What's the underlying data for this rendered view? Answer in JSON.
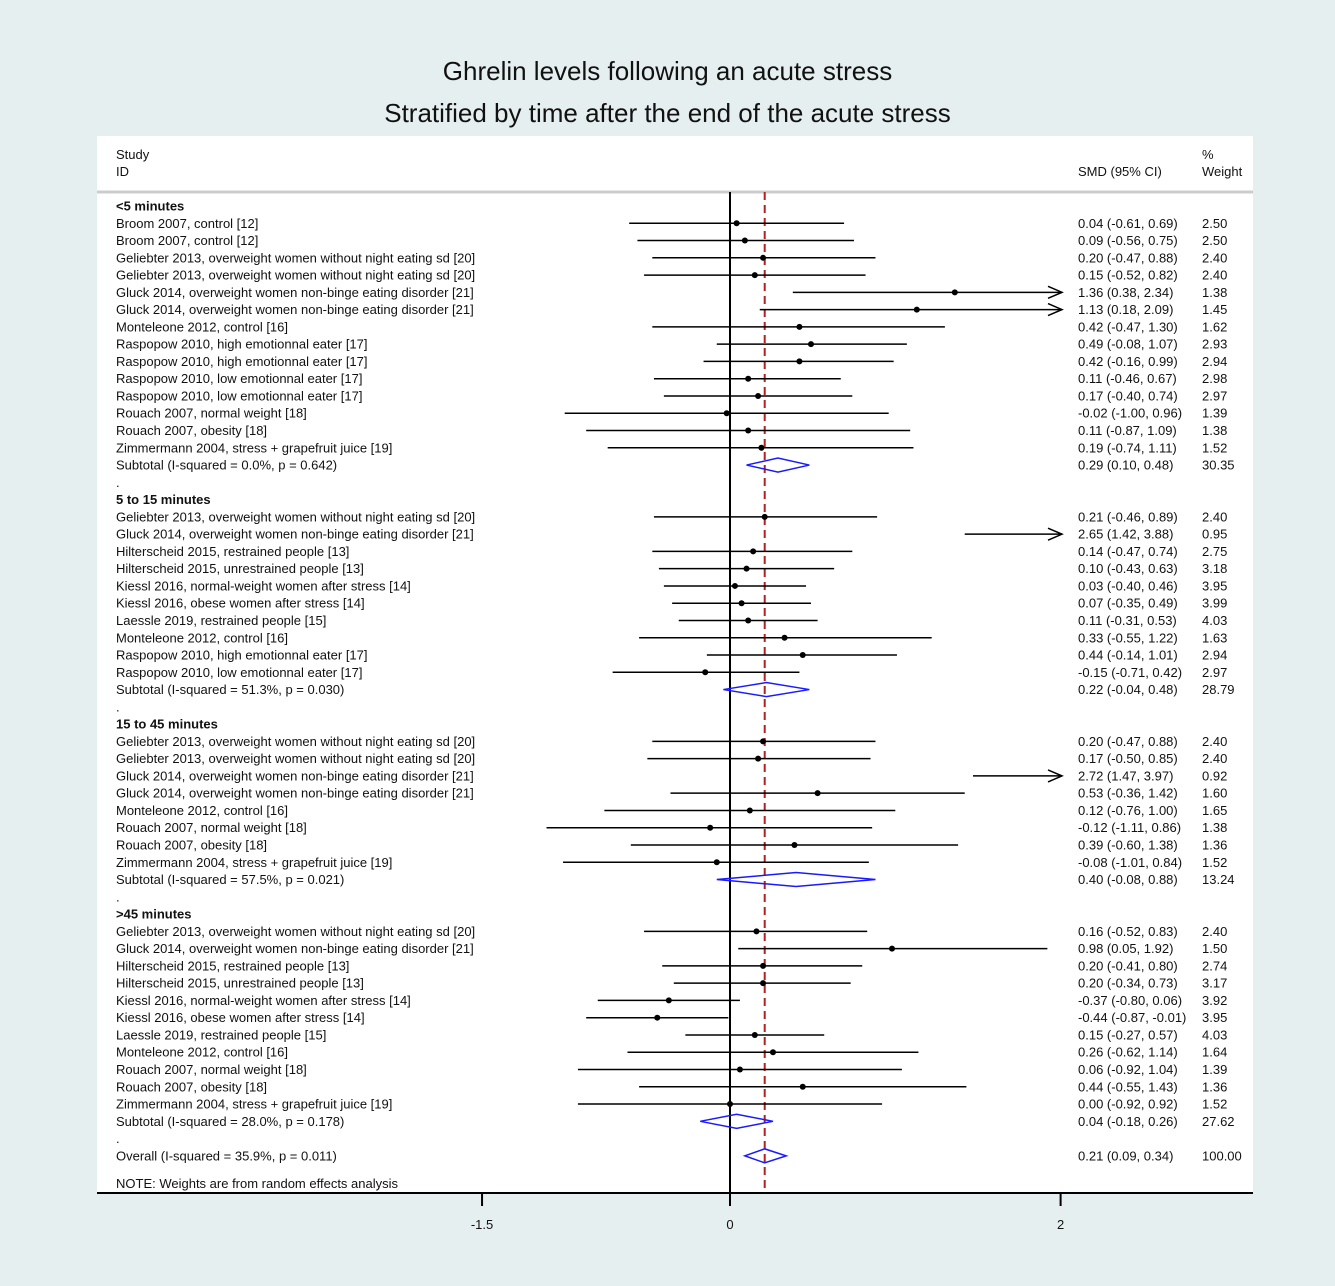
{
  "title": "Ghrelin levels following an acute stress",
  "subtitle": "Stratified by time after the end of the acute stress",
  "header": {
    "study_label": "Study",
    "id_label": "ID",
    "effect_label": "SMD (95% CI)",
    "weight_label_1": "%",
    "weight_label_2": "Weight"
  },
  "note": "NOTE: Weights are from random effects analysis",
  "chart_data": {
    "type": "forest",
    "x_ticks": [
      -1.5,
      0,
      2
    ],
    "x_tick_labels": [
      "-1.5",
      "0",
      "2"
    ],
    "xlim": [
      -2.32,
      3.15
    ],
    "null_line": 0,
    "overall_line": 0.21,
    "colors": {
      "diamond": "#1a1aff",
      "overall_line": "#b22222",
      "marks": "#000000"
    },
    "rows": [
      {
        "kind": "group",
        "label": "<5 minutes"
      },
      {
        "kind": "study",
        "label": "Broom 2007, control [12]",
        "est": 0.04,
        "lo": -0.61,
        "hi": 0.69,
        "ci": "0.04 (-0.61, 0.69)",
        "weight": "2.50"
      },
      {
        "kind": "study",
        "label": "Broom 2007, control [12]",
        "est": 0.09,
        "lo": -0.56,
        "hi": 0.75,
        "ci": "0.09 (-0.56, 0.75)",
        "weight": "2.50"
      },
      {
        "kind": "study",
        "label": "Geliebter 2013, overweight women without night eating sd [20]",
        "est": 0.2,
        "lo": -0.47,
        "hi": 0.88,
        "ci": "0.20 (-0.47, 0.88)",
        "weight": "2.40"
      },
      {
        "kind": "study",
        "label": "Geliebter 2013, overweight women without night eating sd [20]",
        "est": 0.15,
        "lo": -0.52,
        "hi": 0.82,
        "ci": "0.15 (-0.52, 0.82)",
        "weight": "2.40"
      },
      {
        "kind": "study",
        "label": "Gluck 2014, overweight women non-binge eating disorder [21]",
        "est": 1.36,
        "lo": 0.38,
        "hi": 2.34,
        "ci": "1.36 (0.38, 2.34)",
        "weight": "1.38"
      },
      {
        "kind": "study",
        "label": "Gluck 2014, overweight women non-binge eating disorder [21]",
        "est": 1.13,
        "lo": 0.18,
        "hi": 2.09,
        "ci": "1.13 (0.18, 2.09)",
        "weight": "1.45"
      },
      {
        "kind": "study",
        "label": "Monteleone 2012, control [16]",
        "est": 0.42,
        "lo": -0.47,
        "hi": 1.3,
        "ci": "0.42 (-0.47, 1.30)",
        "weight": "1.62"
      },
      {
        "kind": "study",
        "label": "Raspopow 2010, high emotionnal eater [17]",
        "est": 0.49,
        "lo": -0.08,
        "hi": 1.07,
        "ci": "0.49 (-0.08, 1.07)",
        "weight": "2.93"
      },
      {
        "kind": "study",
        "label": "Raspopow 2010, high emotionnal eater [17]",
        "est": 0.42,
        "lo": -0.16,
        "hi": 0.99,
        "ci": "0.42 (-0.16, 0.99)",
        "weight": "2.94"
      },
      {
        "kind": "study",
        "label": "Raspopow 2010, low emotionnal eater [17]",
        "est": 0.11,
        "lo": -0.46,
        "hi": 0.67,
        "ci": "0.11 (-0.46, 0.67)",
        "weight": "2.98"
      },
      {
        "kind": "study",
        "label": "Raspopow 2010, low emotionnal eater [17]",
        "est": 0.17,
        "lo": -0.4,
        "hi": 0.74,
        "ci": "0.17 (-0.40, 0.74)",
        "weight": "2.97"
      },
      {
        "kind": "study",
        "label": "Rouach 2007, normal weight [18]",
        "est": -0.02,
        "lo": -1.0,
        "hi": 0.96,
        "ci": "-0.02 (-1.00, 0.96)",
        "weight": "1.39"
      },
      {
        "kind": "study",
        "label": "Rouach 2007, obesity [18]",
        "est": 0.11,
        "lo": -0.87,
        "hi": 1.09,
        "ci": "0.11 (-0.87, 1.09)",
        "weight": "1.38"
      },
      {
        "kind": "study",
        "label": "Zimmermann 2004, stress + grapefruit juice [19]",
        "est": 0.19,
        "lo": -0.74,
        "hi": 1.11,
        "ci": "0.19 (-0.74, 1.11)",
        "weight": "1.52"
      },
      {
        "kind": "subtotal",
        "label": "Subtotal  (I-squared = 0.0%, p = 0.642)",
        "est": 0.29,
        "lo": 0.1,
        "hi": 0.48,
        "ci": "0.29 (0.10, 0.48)",
        "weight": "30.35"
      },
      {
        "kind": "dot",
        "label": "."
      },
      {
        "kind": "group",
        "label": "5 to 15 minutes"
      },
      {
        "kind": "study",
        "label": "Geliebter 2013, overweight women without night eating sd [20]",
        "est": 0.21,
        "lo": -0.46,
        "hi": 0.89,
        "ci": "0.21 (-0.46, 0.89)",
        "weight": "2.40"
      },
      {
        "kind": "study",
        "label": "Gluck 2014, overweight women non-binge eating disorder [21]",
        "est": 2.65,
        "lo": 1.42,
        "hi": 3.88,
        "ci": "2.65 (1.42, 3.88)",
        "weight": "0.95"
      },
      {
        "kind": "study",
        "label": "Hilterscheid 2015, restrained people [13]",
        "est": 0.14,
        "lo": -0.47,
        "hi": 0.74,
        "ci": "0.14 (-0.47, 0.74)",
        "weight": "2.75"
      },
      {
        "kind": "study",
        "label": "Hilterscheid 2015, unrestrained people [13]",
        "est": 0.1,
        "lo": -0.43,
        "hi": 0.63,
        "ci": "0.10 (-0.43, 0.63)",
        "weight": "3.18"
      },
      {
        "kind": "study",
        "label": "Kiessl 2016, normal-weight women after stress [14]",
        "est": 0.03,
        "lo": -0.4,
        "hi": 0.46,
        "ci": "0.03 (-0.40, 0.46)",
        "weight": "3.95"
      },
      {
        "kind": "study",
        "label": "Kiessl 2016, obese women after stress [14]",
        "est": 0.07,
        "lo": -0.35,
        "hi": 0.49,
        "ci": "0.07 (-0.35, 0.49)",
        "weight": "3.99"
      },
      {
        "kind": "study",
        "label": "Laessle 2019, restrained people [15]",
        "est": 0.11,
        "lo": -0.31,
        "hi": 0.53,
        "ci": "0.11 (-0.31, 0.53)",
        "weight": "4.03"
      },
      {
        "kind": "study",
        "label": "Monteleone 2012, control [16]",
        "est": 0.33,
        "lo": -0.55,
        "hi": 1.22,
        "ci": "0.33 (-0.55, 1.22)",
        "weight": "1.63"
      },
      {
        "kind": "study",
        "label": "Raspopow 2010, high emotionnal eater [17]",
        "est": 0.44,
        "lo": -0.14,
        "hi": 1.01,
        "ci": "0.44 (-0.14, 1.01)",
        "weight": "2.94"
      },
      {
        "kind": "study",
        "label": "Raspopow 2010, low emotionnal eater [17]",
        "est": -0.15,
        "lo": -0.71,
        "hi": 0.42,
        "ci": "-0.15 (-0.71, 0.42)",
        "weight": "2.97"
      },
      {
        "kind": "subtotal",
        "label": "Subtotal  (I-squared = 51.3%, p = 0.030)",
        "est": 0.22,
        "lo": -0.04,
        "hi": 0.48,
        "ci": "0.22 (-0.04, 0.48)",
        "weight": "28.79"
      },
      {
        "kind": "dot",
        "label": "."
      },
      {
        "kind": "group",
        "label": "15 to 45 minutes"
      },
      {
        "kind": "study",
        "label": "Geliebter 2013, overweight women without night eating sd [20]",
        "est": 0.2,
        "lo": -0.47,
        "hi": 0.88,
        "ci": "0.20 (-0.47, 0.88)",
        "weight": "2.40"
      },
      {
        "kind": "study",
        "label": "Geliebter 2013, overweight women without night eating sd [20]",
        "est": 0.17,
        "lo": -0.5,
        "hi": 0.85,
        "ci": "0.17 (-0.50, 0.85)",
        "weight": "2.40"
      },
      {
        "kind": "study",
        "label": "Gluck 2014, overweight women non-binge eating disorder [21]",
        "est": 2.72,
        "lo": 1.47,
        "hi": 3.97,
        "ci": "2.72 (1.47, 3.97)",
        "weight": "0.92"
      },
      {
        "kind": "study",
        "label": "Gluck 2014, overweight women non-binge eating disorder [21]",
        "est": 0.53,
        "lo": -0.36,
        "hi": 1.42,
        "ci": "0.53 (-0.36, 1.42)",
        "weight": "1.60"
      },
      {
        "kind": "study",
        "label": "Monteleone 2012, control [16]",
        "est": 0.12,
        "lo": -0.76,
        "hi": 1.0,
        "ci": "0.12 (-0.76, 1.00)",
        "weight": "1.65"
      },
      {
        "kind": "study",
        "label": "Rouach 2007, normal weight [18]",
        "est": -0.12,
        "lo": -1.11,
        "hi": 0.86,
        "ci": "-0.12 (-1.11, 0.86)",
        "weight": "1.38"
      },
      {
        "kind": "study",
        "label": "Rouach 2007, obesity [18]",
        "est": 0.39,
        "lo": -0.6,
        "hi": 1.38,
        "ci": "0.39 (-0.60, 1.38)",
        "weight": "1.36"
      },
      {
        "kind": "study",
        "label": "Zimmermann 2004, stress + grapefruit juice [19]",
        "est": -0.08,
        "lo": -1.01,
        "hi": 0.84,
        "ci": "-0.08 (-1.01, 0.84)",
        "weight": "1.52"
      },
      {
        "kind": "subtotal",
        "label": "Subtotal  (I-squared = 57.5%, p = 0.021)",
        "est": 0.4,
        "lo": -0.08,
        "hi": 0.88,
        "ci": "0.40 (-0.08, 0.88)",
        "weight": "13.24"
      },
      {
        "kind": "dot",
        "label": "."
      },
      {
        "kind": "group",
        "label": ">45 minutes"
      },
      {
        "kind": "study",
        "label": "Geliebter 2013, overweight women without night eating sd [20]",
        "est": 0.16,
        "lo": -0.52,
        "hi": 0.83,
        "ci": "0.16 (-0.52, 0.83)",
        "weight": "2.40"
      },
      {
        "kind": "study",
        "label": "Gluck 2014, overweight women non-binge eating disorder [21]",
        "est": 0.98,
        "lo": 0.05,
        "hi": 1.92,
        "ci": "0.98 (0.05, 1.92)",
        "weight": "1.50"
      },
      {
        "kind": "study",
        "label": "Hilterscheid 2015, restrained people [13]",
        "est": 0.2,
        "lo": -0.41,
        "hi": 0.8,
        "ci": "0.20 (-0.41, 0.80)",
        "weight": "2.74"
      },
      {
        "kind": "study",
        "label": "Hilterscheid 2015, unrestrained people [13]",
        "est": 0.2,
        "lo": -0.34,
        "hi": 0.73,
        "ci": "0.20 (-0.34, 0.73)",
        "weight": "3.17"
      },
      {
        "kind": "study",
        "label": "Kiessl 2016, normal-weight women after stress [14]",
        "est": -0.37,
        "lo": -0.8,
        "hi": 0.06,
        "ci": "-0.37 (-0.80, 0.06)",
        "weight": "3.92"
      },
      {
        "kind": "study",
        "label": "Kiessl 2016, obese women after stress [14]",
        "est": -0.44,
        "lo": -0.87,
        "hi": -0.01,
        "ci": "-0.44 (-0.87, -0.01)",
        "weight": "3.95"
      },
      {
        "kind": "study",
        "label": "Laessle 2019, restrained people [15]",
        "est": 0.15,
        "lo": -0.27,
        "hi": 0.57,
        "ci": "0.15 (-0.27, 0.57)",
        "weight": "4.03"
      },
      {
        "kind": "study",
        "label": "Monteleone 2012, control [16]",
        "est": 0.26,
        "lo": -0.62,
        "hi": 1.14,
        "ci": "0.26 (-0.62, 1.14)",
        "weight": "1.64"
      },
      {
        "kind": "study",
        "label": "Rouach 2007, normal weight [18]",
        "est": 0.06,
        "lo": -0.92,
        "hi": 1.04,
        "ci": "0.06 (-0.92, 1.04)",
        "weight": "1.39"
      },
      {
        "kind": "study",
        "label": "Rouach 2007, obesity [18]",
        "est": 0.44,
        "lo": -0.55,
        "hi": 1.43,
        "ci": "0.44 (-0.55, 1.43)",
        "weight": "1.36"
      },
      {
        "kind": "study",
        "label": "Zimmermann 2004, stress + grapefruit juice [19]",
        "est": 0.0,
        "lo": -0.92,
        "hi": 0.92,
        "ci": "0.00 (-0.92, 0.92)",
        "weight": "1.52"
      },
      {
        "kind": "subtotal",
        "label": "Subtotal  (I-squared = 28.0%, p = 0.178)",
        "est": 0.04,
        "lo": -0.18,
        "hi": 0.26,
        "ci": "0.04 (-0.18, 0.26)",
        "weight": "27.62"
      },
      {
        "kind": "dot",
        "label": "."
      },
      {
        "kind": "overall",
        "label": "Overall  (I-squared = 35.9%, p = 0.011)",
        "est": 0.21,
        "lo": 0.09,
        "hi": 0.34,
        "ci": "0.21 (0.09, 0.34)",
        "weight": "100.00"
      }
    ]
  }
}
